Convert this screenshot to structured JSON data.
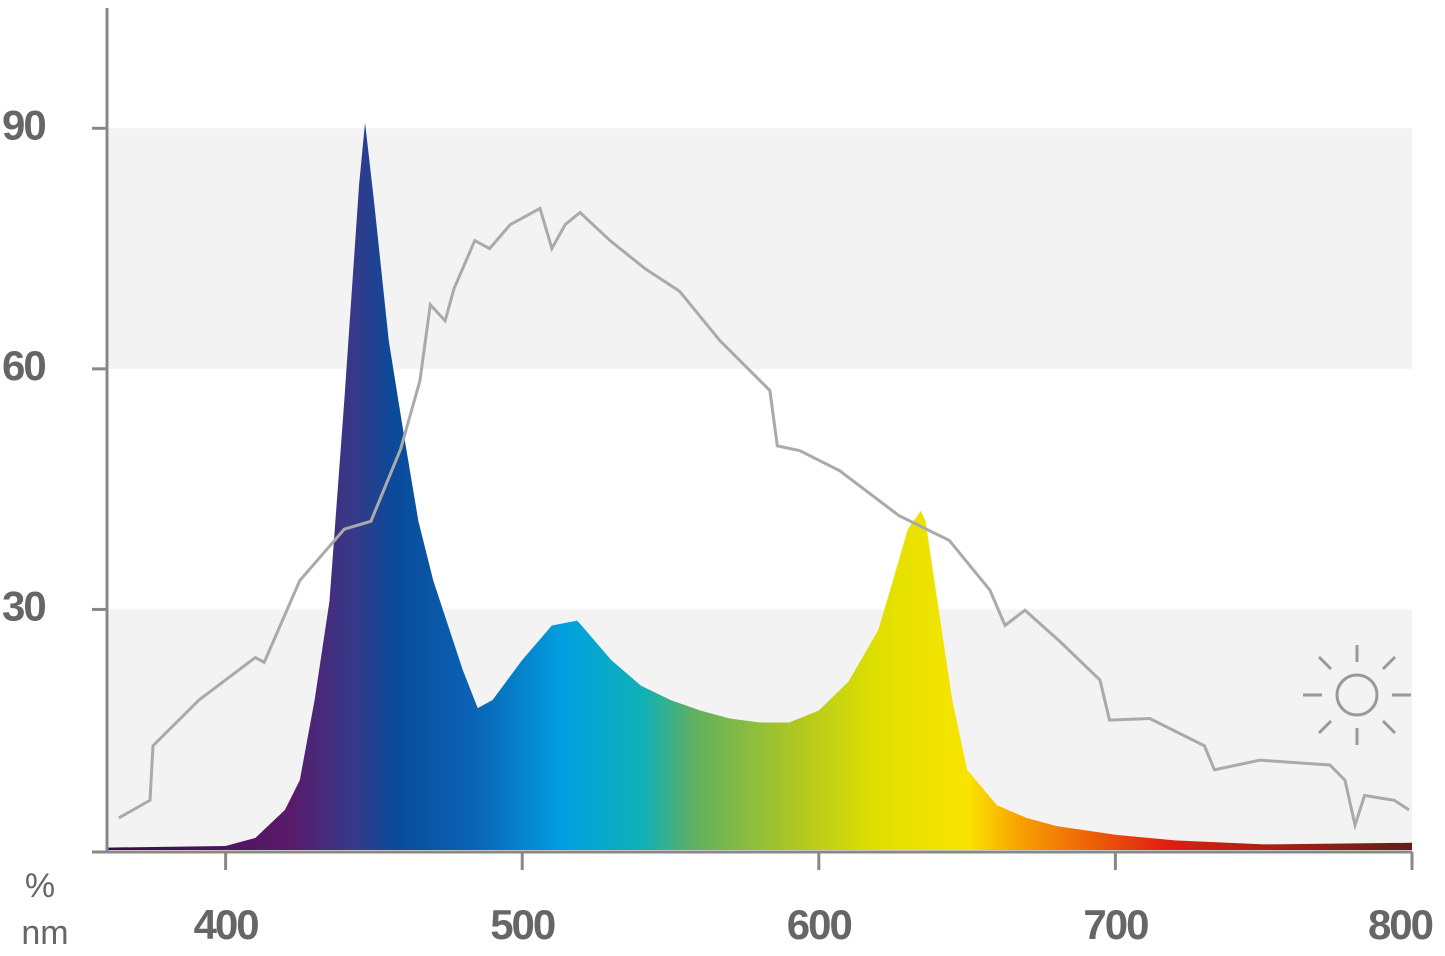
{
  "chart_data": {
    "type": "spectrum",
    "y_label": "%",
    "x_label": "nm",
    "xlim": [
      360,
      800
    ],
    "ylim": [
      0,
      105
    ],
    "xticks": [
      400,
      500,
      600,
      700,
      800
    ],
    "yticks": [
      30,
      60,
      90
    ],
    "series": [
      {
        "type": "area",
        "x": [
          360,
          400,
          410,
          420,
          425,
          430,
          435,
          440,
          445,
          447,
          450,
          455,
          460,
          465,
          470,
          480,
          485,
          490,
          500,
          510,
          518.5,
          520,
          530,
          540,
          550,
          560,
          570,
          580,
          590,
          600,
          610,
          620,
          625,
          630,
          634.4,
          636,
          640,
          645,
          650,
          660,
          670,
          680,
          700,
          720,
          750,
          800
        ],
        "values": [
          0.3,
          0.5,
          1.5,
          5,
          8.7,
          18.7,
          31,
          56,
          83,
          90.7,
          81,
          63.5,
          52,
          41,
          33.6,
          22.4,
          17.7,
          18.7,
          23.7,
          28,
          28.6,
          28,
          23.7,
          20.5,
          18.7,
          17.4,
          16.4,
          15.9,
          15.9,
          17.4,
          21,
          27.4,
          33.6,
          40,
          42.3,
          41,
          31,
          18.7,
          10,
          5.6,
          4,
          3,
          1.9,
          1.2,
          0.7,
          0.9
        ]
      },
      {
        "type": "line",
        "color": "#aaaaaa",
        "x": [
          364,
          374.5,
          375.5,
          391,
          410,
          413,
          425,
          440,
          449,
          459,
          465.5,
          469,
          474,
          477,
          484,
          489,
          496,
          506,
          510,
          514.5,
          519.5,
          529.6,
          541.4,
          553,
          566.7,
          583.5,
          586,
          593.6,
          607,
          627,
          644,
          657.7,
          662.8,
          669.5,
          681.3,
          694.8,
          698,
          711.6,
          730,
          733.4,
          748.7,
          772.3,
          777.4,
          780.8,
          784,
          794,
          799
        ],
        "values": [
          4,
          6.2,
          13,
          18.7,
          24,
          23.4,
          33.6,
          40,
          41,
          50,
          58.5,
          68,
          66,
          70,
          76,
          75,
          78,
          80,
          75,
          78,
          79.5,
          76,
          72.5,
          69.7,
          63.5,
          57.3,
          50.4,
          49.8,
          47.3,
          41.7,
          38.6,
          32.4,
          28,
          29.9,
          26,
          21.2,
          16.2,
          16.4,
          13,
          10,
          11.2,
          10.6,
          8.7,
          3.1,
          6.8,
          6.2,
          5
        ]
      }
    ]
  }
}
